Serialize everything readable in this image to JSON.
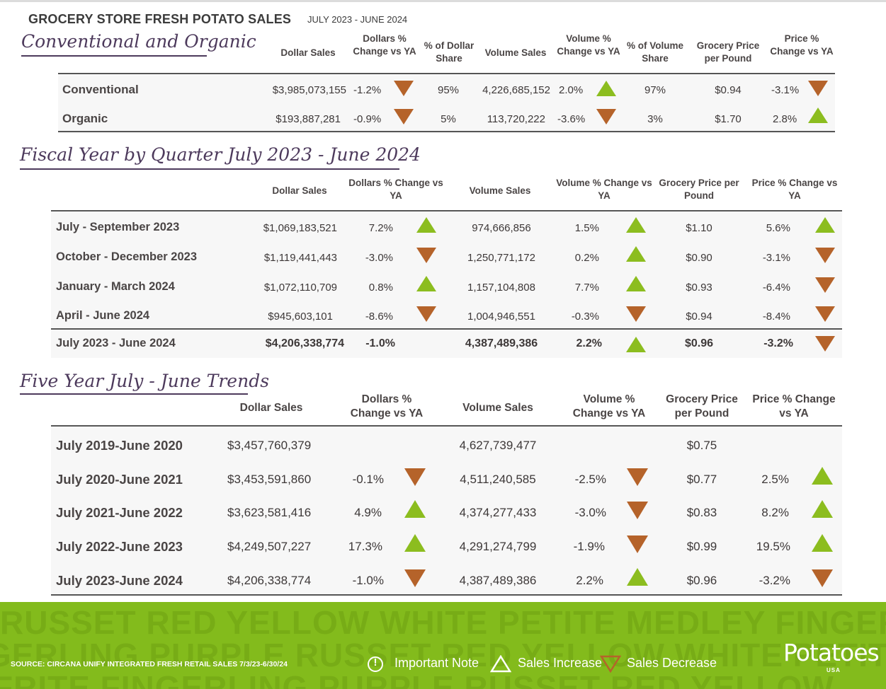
{
  "header": {
    "title": "GROCERY STORE  FRESH POTATO SALES",
    "period": "JULY 2023 - JUNE 2024"
  },
  "colors": {
    "increase": "#8cbd1f",
    "decrease": "#b5632a",
    "heading": "#4d3a5c",
    "footer": "#83bb1c"
  },
  "section1": {
    "title": "Conventional and Organic",
    "columns": [
      "Dollar Sales",
      "Dollars % Change vs YA",
      "% of Dollar Share",
      "Volume Sales",
      "Volume % Change vs YA",
      "% of Volume Share",
      "Grocery Price per Pound",
      "Price % Change vs YA"
    ],
    "rows": [
      {
        "label": "Conventional",
        "dollar_sales": "$3,985,073,155",
        "dollar_chg": "-1.2%",
        "dollar_trend": "down",
        "dollar_share": "95%",
        "volume_sales": "4,226,685,152",
        "volume_chg": "2.0%",
        "volume_trend": "up",
        "volume_share": "97%",
        "price": "$0.94",
        "price_chg": "-3.1%",
        "price_trend": "down"
      },
      {
        "label": "Organic",
        "dollar_sales": "$193,887,281",
        "dollar_chg": "-0.9%",
        "dollar_trend": "down",
        "dollar_share": "5%",
        "volume_sales": "113,720,222",
        "volume_chg": "-3.6%",
        "volume_trend": "down",
        "volume_share": "3%",
        "price": "$1.70",
        "price_chg": "2.8%",
        "price_trend": "up"
      }
    ]
  },
  "section2": {
    "title": "Fiscal Year by Quarter July 2023 - June 2024",
    "columns": [
      "Dollar Sales",
      "Dollars % Change vs YA",
      "Volume Sales",
      "Volume % Change vs YA",
      "Grocery Price per Pound",
      "Price % Change vs YA"
    ],
    "rows": [
      {
        "label": "July - September 2023",
        "dollar_sales": "$1,069,183,521",
        "dollar_chg": "7.2%",
        "dollar_trend": "up",
        "volume_sales": "974,666,856",
        "volume_chg": "1.5%",
        "volume_trend": "up",
        "price": "$1.10",
        "price_chg": "5.6%",
        "price_trend": "up"
      },
      {
        "label": "October - December 2023",
        "dollar_sales": "$1,119,441,443",
        "dollar_chg": "-3.0%",
        "dollar_trend": "down",
        "volume_sales": "1,250,771,172",
        "volume_chg": "0.2%",
        "volume_trend": "up",
        "price": "$0.90",
        "price_chg": "-3.1%",
        "price_trend": "down"
      },
      {
        "label": "January - March 2024",
        "dollar_sales": "$1,072,110,709",
        "dollar_chg": "0.8%",
        "dollar_trend": "up",
        "volume_sales": "1,157,104,808",
        "volume_chg": "7.7%",
        "volume_trend": "up",
        "price": "$0.93",
        "price_chg": "-6.4%",
        "price_trend": "down"
      },
      {
        "label": "April - June 2024",
        "dollar_sales": "$945,603,101",
        "dollar_chg": "-8.6%",
        "dollar_trend": "down",
        "volume_sales": "1,004,946,551",
        "volume_chg": "-0.3%",
        "volume_trend": "down",
        "price": "$0.94",
        "price_chg": "-8.4%",
        "price_trend": "down"
      }
    ],
    "total": {
      "label": "July 2023 - June 2024",
      "dollar_sales": "$4,206,338,774",
      "dollar_chg": "-1.0%",
      "volume_sales": "4,387,489,386",
      "volume_chg": "2.2%",
      "volume_trend": "up",
      "price": "$0.96",
      "price_chg": "-3.2%",
      "price_trend": "down"
    }
  },
  "section3": {
    "title": "Five Year July - June Trends",
    "columns": [
      "Dollar Sales",
      "Dollars % Change vs YA",
      "Volume Sales",
      "Volume % Change vs YA",
      "Grocery Price per Pound",
      "Price % Change vs YA"
    ],
    "rows": [
      {
        "label": "July 2019-June 2020",
        "dollar_sales": "$3,457,760,379",
        "dollar_chg": "",
        "dollar_trend": "none",
        "volume_sales": "4,627,739,477",
        "volume_chg": "",
        "volume_trend": "none",
        "price": "$0.75",
        "price_chg": "",
        "price_trend": "none"
      },
      {
        "label": "July 2020-June 2021",
        "dollar_sales": "$3,453,591,860",
        "dollar_chg": "-0.1%",
        "dollar_trend": "down",
        "volume_sales": "4,511,240,585",
        "volume_chg": "-2.5%",
        "volume_trend": "down",
        "price": "$0.77",
        "price_chg": "2.5%",
        "price_trend": "up"
      },
      {
        "label": "July 2021-June 2022",
        "dollar_sales": "$3,623,581,416",
        "dollar_chg": "4.9%",
        "dollar_trend": "up",
        "volume_sales": "4,374,277,433",
        "volume_chg": "-3.0%",
        "volume_trend": "down",
        "price": "$0.83",
        "price_chg": "8.2%",
        "price_trend": "up"
      },
      {
        "label": "July 2022-June 2023",
        "dollar_sales": "$4,249,507,227",
        "dollar_chg": "17.3%",
        "dollar_trend": "up",
        "volume_sales": "4,291,274,799",
        "volume_chg": "-1.9%",
        "volume_trend": "down",
        "price": "$0.99",
        "price_chg": "19.5%",
        "price_trend": "up"
      },
      {
        "label": "July 2023-June 2024",
        "dollar_sales": "$4,206,338,774",
        "dollar_chg": "-1.0%",
        "dollar_trend": "down",
        "volume_sales": "4,387,489,386",
        "volume_chg": "2.2%",
        "volume_trend": "up",
        "price": "$0.96",
        "price_chg": "-3.2%",
        "price_trend": "down"
      }
    ]
  },
  "footer": {
    "watermark": [
      "RUSSET RED YELLOW WHITE PETITE MEDLEY FINGERLING",
      "GERLING PURPLE RUSSET RED YELLOW WHITE PETITE",
      "FRITE FINGERLING PURPLE RUSSET RED YELLOW"
    ],
    "source": "SOURCE: CIRCANA UNIFY INTEGRATED FRESH  RETAIL SALES 7/3/23-6/30/24",
    "legend_note": "Important Note",
    "legend_increase": "Sales Increase",
    "legend_decrease": "Sales Decrease",
    "logo": "Potatoes",
    "logo_sub": "USA"
  }
}
